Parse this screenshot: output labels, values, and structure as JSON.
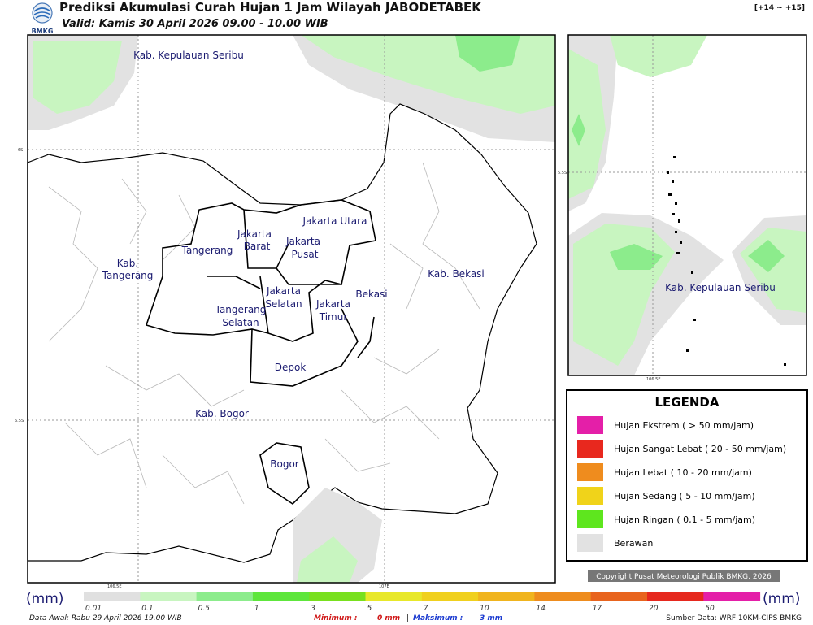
{
  "header": {
    "logo": "BMKG",
    "title": "Prediksi Akumulasi Curah Hujan 1 Jam Wilayah JABODETABEK",
    "valid": "Valid: Kamis 30 April 2026 09.00 - 10.00 WIB",
    "range": "[+14 ~ +15]"
  },
  "map": {
    "labels": [
      {
        "lines": [
          "Kab. Kepulauan Seribu"
        ]
      },
      {
        "lines": [
          "Jakarta Utara"
        ]
      },
      {
        "lines": [
          "Jakarta",
          "Barat"
        ]
      },
      {
        "lines": [
          "Jakarta",
          "Pusat"
        ]
      },
      {
        "lines": [
          "Tangerang"
        ]
      },
      {
        "lines": [
          "Kab.",
          "Tangerang"
        ]
      },
      {
        "lines": [
          "Jakarta",
          "Selatan"
        ]
      },
      {
        "lines": [
          "Jakarta",
          "Timur"
        ]
      },
      {
        "lines": [
          "Bekasi"
        ]
      },
      {
        "lines": [
          "Kab. Bekasi"
        ]
      },
      {
        "lines": [
          "Tangerang",
          "Selatan"
        ]
      },
      {
        "lines": [
          "Depok"
        ]
      },
      {
        "lines": [
          "Kab. Bogor"
        ]
      },
      {
        "lines": [
          "Bogor"
        ]
      }
    ],
    "axis": [
      "6S",
      "6.5S",
      "106.5E",
      "107E"
    ]
  },
  "inset": {
    "labels": [
      "Kab. Kepulauan Seribu"
    ],
    "axis": [
      "5.5S",
      "106.5E"
    ]
  },
  "legend": {
    "title": "LEGENDA",
    "items": [
      {
        "label": "Hujan Ekstrem ( > 50 mm/jam)",
        "color": "#e41fa8"
      },
      {
        "label": "Hujan Sangat Lebat ( 20 - 50 mm/jam)",
        "color": "#e8281e"
      },
      {
        "label": "Hujan Lebat ( 10 - 20 mm/jam)",
        "color": "#ef8c1e"
      },
      {
        "label": "Hujan Sedang ( 5 - 10 mm/jam)",
        "color": "#f0d31a"
      },
      {
        "label": "Hujan Ringan ( 0,1 - 5 mm/jam)",
        "color": "#5ee61e"
      },
      {
        "label": "Berawan",
        "color": "#e2e2e2"
      }
    ]
  },
  "copyright": "Copyright Pusat Meteorologi Publik BMKG, 2026",
  "colorbar": {
    "unit": "(mm)",
    "ticks": [
      "0.01",
      "0.1",
      "0.5",
      "1",
      "3",
      "5",
      "7",
      "10",
      "14",
      "17",
      "20",
      "50"
    ],
    "colors": [
      "#e0e0e0",
      "#c8f5c0",
      "#8cec8c",
      "#5ee63c",
      "#78e01e",
      "#e8e82a",
      "#f0d01e",
      "#f0b41e",
      "#ee8c1e",
      "#e8641e",
      "#e6281e",
      "#e41fa8"
    ]
  },
  "footer": {
    "data_awal": "Data Awal: Rabu 29 April 2026 19.00 WIB",
    "min_label": "Minimum :",
    "min_value": "0 mm",
    "separator": "|",
    "max_label": "Maksimum :",
    "max_value": "3 mm",
    "source": "Sumber Data: WRF 10KM-CIPS BMKG"
  }
}
